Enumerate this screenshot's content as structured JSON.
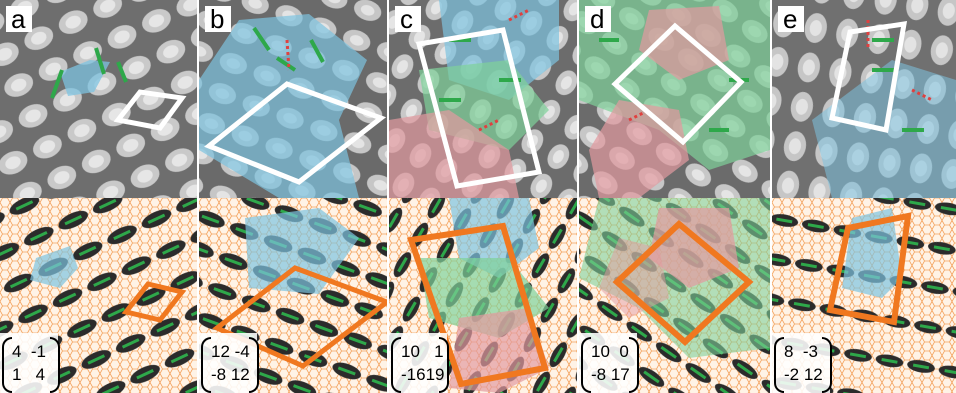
{
  "panels": [
    {
      "label": "a",
      "matrix": {
        "row1": "4  -1",
        "row2": "1   4"
      }
    },
    {
      "label": "b",
      "matrix": {
        "row1": "12 -4",
        "row2": "-8 12"
      }
    },
    {
      "label": "c",
      "matrix": {
        "row1": "10   1",
        "row2": "-1619"
      }
    },
    {
      "label": "d",
      "matrix": {
        "row1": "10  0",
        "row2": "-8 17"
      }
    },
    {
      "label": "e",
      "matrix": {
        "row1": "8  -3",
        "row2": "-2 12"
      }
    }
  ],
  "colors": {
    "stm_bg": "#7a7a7a",
    "blue_domain": "#7ec3e0",
    "green_domain": "#7fd19a",
    "red_domain": "#e39aa0",
    "green_mark": "#2ea84a",
    "red_mark": "#e0403f",
    "cell_white": "#ffffff",
    "cell_orange": "#f07820",
    "lattice_orange": "#f4a460",
    "molecule_dark": "#2b2b2b"
  }
}
